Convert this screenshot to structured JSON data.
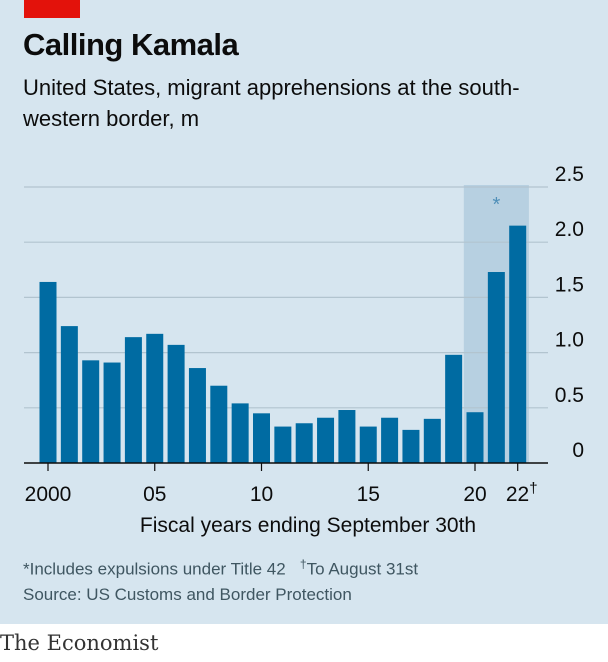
{
  "header": {
    "title": "Calling Kamala",
    "subtitle": "United States, migrant apprehensions at the south-western border, m"
  },
  "footer": {
    "note_1": "*Includes expulsions under Title 42",
    "note_2_mark": "†",
    "note_2": "To August 31st",
    "source": "Source: US Customs and Border Protection",
    "brand": "The Economist"
  },
  "colors": {
    "background": "#d6e5ef",
    "bar": "#006ba2",
    "highlight": "#b7d0e1",
    "gridline": "#b2c4cf",
    "accent_red": "#e3120b"
  },
  "chart_data": {
    "type": "bar",
    "title": "Calling Kamala",
    "xlabel": "Fiscal years ending September 30th",
    "ylabel": "",
    "ylim": [
      0,
      2.5
    ],
    "yticks": [
      "0",
      "0.5",
      "1.0",
      "1.5",
      "2.0",
      "2.5"
    ],
    "y_axis_side": "right",
    "grid": true,
    "categories": [
      2000,
      2001,
      2002,
      2003,
      2004,
      2005,
      2006,
      2007,
      2008,
      2009,
      2010,
      2011,
      2012,
      2013,
      2014,
      2015,
      2016,
      2017,
      2018,
      2019,
      2020,
      2021,
      2022
    ],
    "values": [
      1.64,
      1.24,
      0.93,
      0.91,
      1.14,
      1.17,
      1.07,
      0.86,
      0.7,
      0.54,
      0.45,
      0.33,
      0.36,
      0.41,
      0.48,
      0.33,
      0.41,
      0.3,
      0.4,
      0.98,
      0.46,
      1.73,
      2.15
    ],
    "xtick_labels": [
      {
        "year": 2000,
        "label": "2000"
      },
      {
        "year": 2005,
        "label": "05"
      },
      {
        "year": 2010,
        "label": "10"
      },
      {
        "year": 2015,
        "label": "15"
      },
      {
        "year": 2020,
        "label": "20"
      },
      {
        "year": 2022,
        "label": "22†"
      }
    ],
    "highlight": {
      "from": 2020,
      "to": 2022,
      "label": "*"
    }
  }
}
